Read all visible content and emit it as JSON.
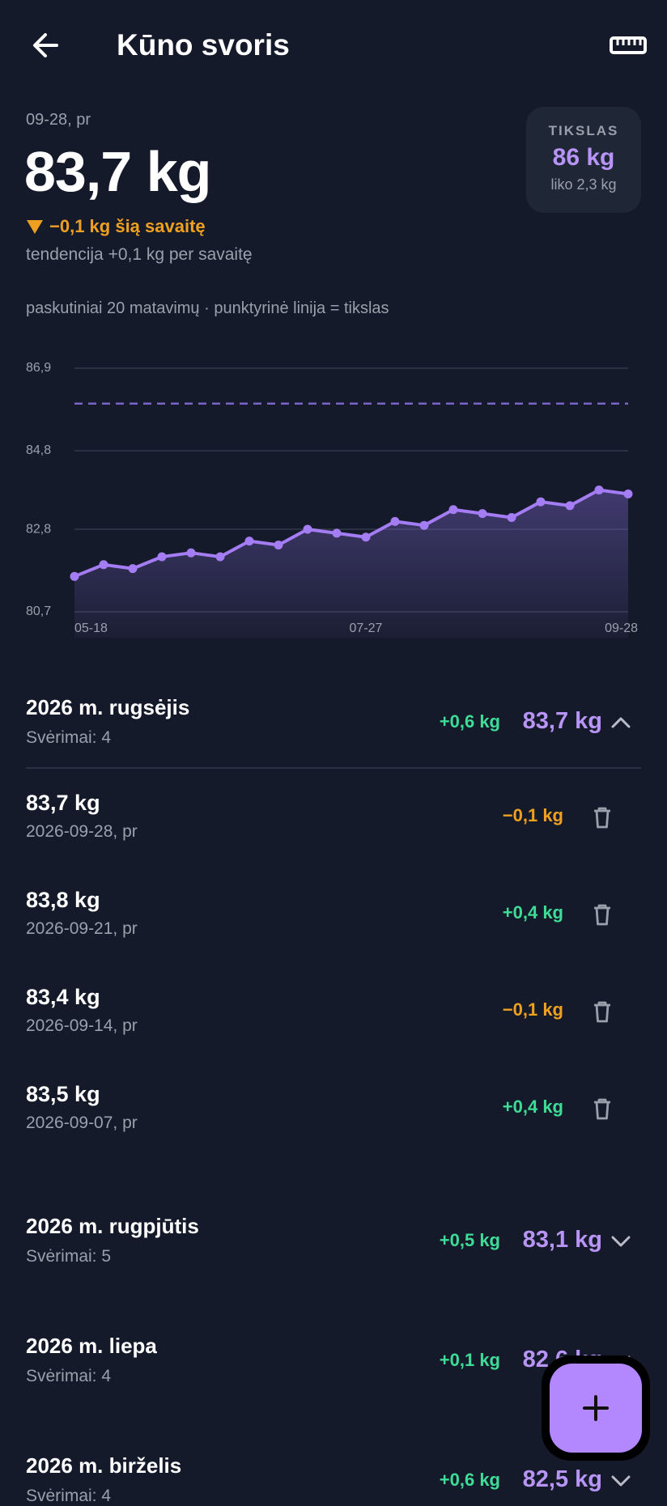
{
  "header": {
    "title": "Kūno svoris"
  },
  "summary": {
    "date": "09-28, pr",
    "weight": "83,7 kg",
    "weekly_change": "−0,1 kg šią savaitę",
    "trend": "tendencija +0,1 kg per savaitę"
  },
  "goal": {
    "label": "TIKSLAS",
    "value": "86 kg",
    "remaining": "liko 2,3 kg"
  },
  "chart_caption": "paskutiniai 20 matavimų · punktyrinė linija = tikslas",
  "chart_data": {
    "type": "line",
    "categories": [
      "05-18",
      null,
      null,
      null,
      null,
      null,
      null,
      null,
      null,
      null,
      "07-27",
      null,
      null,
      null,
      null,
      null,
      null,
      null,
      null,
      "09-28"
    ],
    "values": [
      81.6,
      81.9,
      81.8,
      82.1,
      82.2,
      82.1,
      82.5,
      82.4,
      82.8,
      82.7,
      82.6,
      83.0,
      82.9,
      83.3,
      83.2,
      83.1,
      83.5,
      83.4,
      83.8,
      83.7
    ],
    "target": 86,
    "ylim": [
      80.7,
      86.9
    ],
    "yticks": [
      {
        "value": 80.7,
        "label": "80,7"
      },
      {
        "value": 82.8,
        "label": "82,8"
      },
      {
        "value": 84.8,
        "label": "84,8"
      },
      {
        "value": 86.9,
        "label": "86,9"
      }
    ],
    "grid": true,
    "color": "#a47cf3",
    "target_color": "#7b64c9"
  },
  "months": [
    {
      "title": "2026 m. rugsėjis",
      "count": "Svėrimai: 4",
      "change": "+0,6 kg",
      "weight": "83,7 kg",
      "expanded": true,
      "entries": [
        {
          "weight": "83,7 kg",
          "date": "2026-09-28, pr",
          "change": "−0,1 kg"
        },
        {
          "weight": "83,8 kg",
          "date": "2026-09-21, pr",
          "change": "+0,4 kg"
        },
        {
          "weight": "83,4 kg",
          "date": "2026-09-14, pr",
          "change": "−0,1 kg"
        },
        {
          "weight": "83,5 kg",
          "date": "2026-09-07, pr",
          "change": "+0,4 kg"
        }
      ]
    },
    {
      "title": "2026 m. rugpjūtis",
      "count": "Svėrimai: 5",
      "change": "+0,5 kg",
      "weight": "83,1 kg",
      "expanded": false,
      "entries": []
    },
    {
      "title": "2026 m. liepa",
      "count": "Svėrimai: 4",
      "change": "+0,1 kg",
      "weight": "82,6 kg",
      "expanded": false,
      "entries": []
    },
    {
      "title": "2026 m. birželis",
      "count": "Svėrimai: 4",
      "change": "+0,6 kg",
      "weight": "82,5 kg",
      "expanded": false,
      "entries": []
    }
  ]
}
